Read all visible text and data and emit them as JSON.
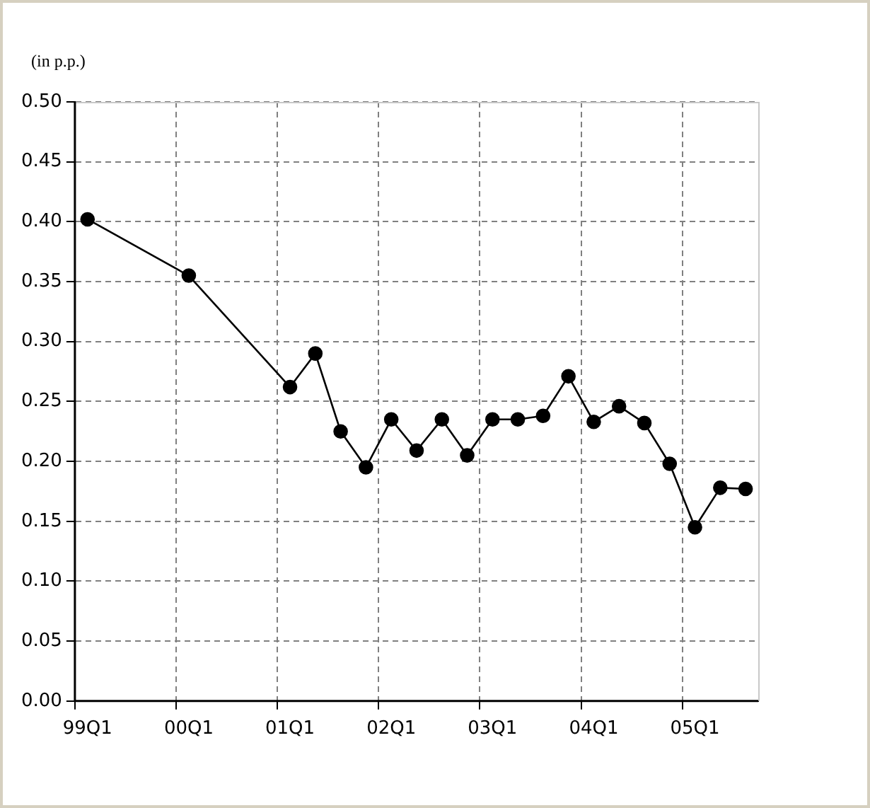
{
  "chart_data": {
    "type": "line",
    "ylabel": "(in p.p.)",
    "categories": [
      "99Q1",
      null,
      null,
      null,
      "00Q1",
      null,
      null,
      null,
      "01Q1",
      null,
      null,
      null,
      "02Q1",
      null,
      null,
      null,
      "03Q1",
      null,
      null,
      null,
      "04Q1",
      null,
      null,
      null,
      "05Q1",
      null,
      null
    ],
    "series": [
      {
        "color": "#000000",
        "values": [
          0.402,
          null,
          null,
          null,
          0.355,
          null,
          null,
          null,
          0.262,
          0.29,
          0.225,
          0.195,
          0.235,
          0.209,
          0.235,
          0.205,
          0.235,
          0.235,
          0.238,
          0.271,
          0.233,
          0.246,
          0.232,
          0.198,
          0.145,
          0.178,
          0.177
        ]
      }
    ],
    "ylim": [
      0,
      0.5
    ],
    "yticks": [
      {
        "value": 0,
        "label": "0.00"
      },
      {
        "value": 0.05,
        "label": "0.05"
      },
      {
        "value": 0.1,
        "label": "0.10"
      },
      {
        "value": 0.15,
        "label": "0.15"
      },
      {
        "value": 0.2,
        "label": "0.20"
      },
      {
        "value": 0.25,
        "label": "0.25"
      },
      {
        "value": 0.3,
        "label": "0.30"
      },
      {
        "value": 0.35,
        "label": "0.35"
      },
      {
        "value": 0.4,
        "label": "0.40"
      },
      {
        "value": 0.45,
        "label": "0.45"
      },
      {
        "value": 0.5,
        "label": "0.50"
      }
    ],
    "grid": true,
    "legend": false,
    "marker": "circle",
    "line_style": "solid"
  }
}
